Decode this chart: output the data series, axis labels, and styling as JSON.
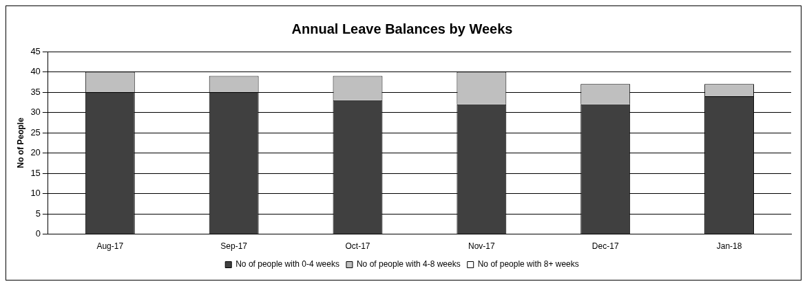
{
  "chart_data": {
    "type": "bar",
    "title": "Annual Leave Balances by Weeks",
    "ylabel": "No of People",
    "categories": [
      "Aug-17",
      "Sep-17",
      "Oct-17",
      "Nov-17",
      "Dec-17",
      "Jan-18"
    ],
    "stacked": true,
    "series": [
      {
        "name": "No of people with 0-4 weeks",
        "color": "#404040",
        "values": [
          35,
          35,
          33,
          32,
          32,
          34
        ]
      },
      {
        "name": "No of people with 4-8 weeks",
        "color": "#bfbfbf",
        "values": [
          5,
          4,
          6,
          8,
          5,
          3
        ]
      },
      {
        "name": "No of people with 8+ weeks",
        "color": "#ffffff",
        "values": [
          0,
          0,
          0,
          0,
          0,
          0
        ]
      }
    ],
    "ylim": [
      0,
      45
    ],
    "yticks": [
      0,
      5,
      10,
      15,
      20,
      25,
      30,
      35,
      40,
      45
    ],
    "grid": "y",
    "legend": "bottom"
  }
}
